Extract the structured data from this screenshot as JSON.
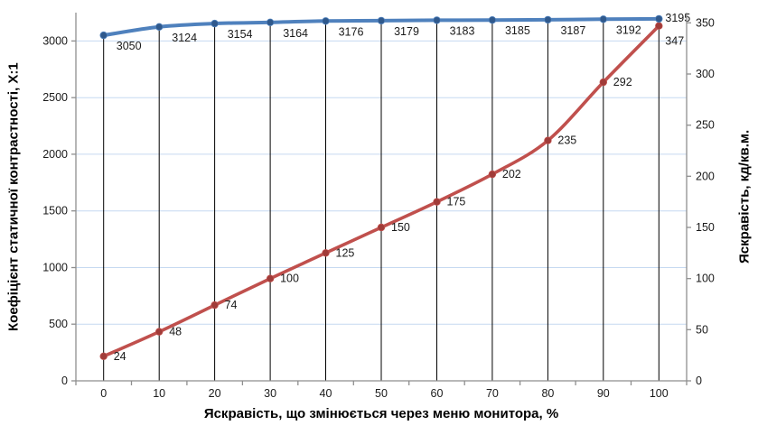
{
  "chart_data": {
    "type": "line",
    "title": "",
    "categories": [
      0,
      10,
      20,
      30,
      40,
      50,
      60,
      70,
      80,
      90,
      100
    ],
    "series": [
      {
        "name": "Коефіцієнт статичної контрастності",
        "axis": "left",
        "color": "#4f81bd",
        "marker_color": "#30598c",
        "drop_lines": true,
        "values": [
          3050,
          3124,
          3154,
          3164,
          3176,
          3179,
          3183,
          3185,
          3187,
          3192,
          3195
        ]
      },
      {
        "name": "Яскравість",
        "axis": "right",
        "color": "#c0504d",
        "marker_color": "#a03c39",
        "drop_lines": false,
        "values": [
          24,
          48,
          74,
          100,
          125,
          150,
          175,
          202,
          235,
          292,
          347
        ]
      }
    ],
    "left_axis": {
      "title": "Коефіцієнт статичної контрастності, Х:1",
      "ticks": [
        0,
        500,
        1000,
        1500,
        2000,
        2500,
        3000
      ],
      "max": 3250
    },
    "right_axis": {
      "title": "Яскравість, кд/кв.м.",
      "ticks": [
        0,
        50,
        100,
        150,
        200,
        250,
        300,
        350
      ],
      "max": 360
    },
    "x_axis": {
      "title": "Яскравість, що змінюється через меню монитора, %"
    },
    "colors": {
      "grid": "#c6d9f1",
      "drop_line": "#000000",
      "axis": "#8e8e8e",
      "tick_label": "#1a1a1a",
      "data_label": "#1a1a1a"
    },
    "legend": "none",
    "grid": "horizontal-light-blue, vertical-black-drop-lines"
  }
}
